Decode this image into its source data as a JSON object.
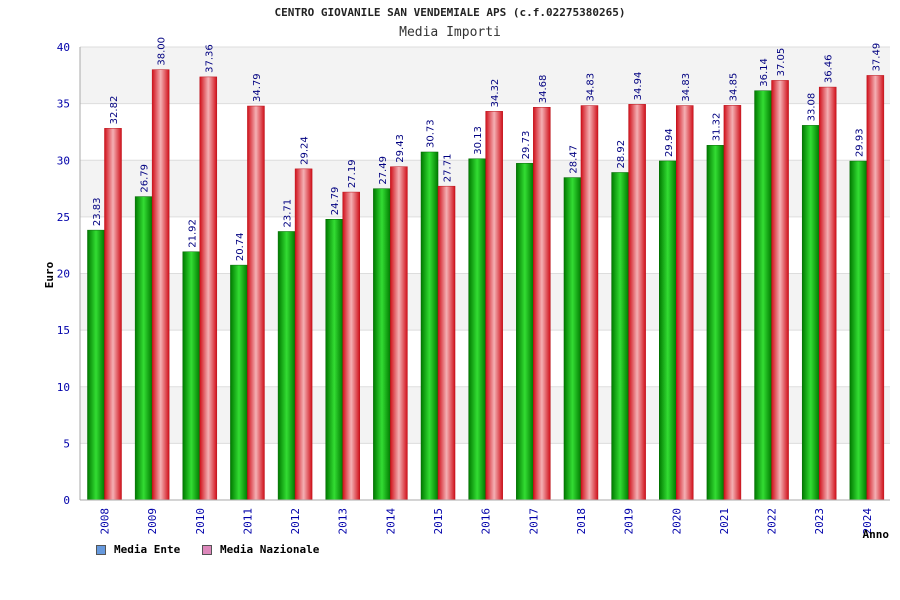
{
  "chart_data": {
    "type": "bar",
    "title": "CENTRO GIOVANILE SAN VENDEMIALE APS (c.f.02275380265)",
    "subtitle": "Media Importi",
    "xlabel": "Anno",
    "ylabel": "Euro",
    "ylim": [
      0,
      40
    ],
    "yticks": [
      0,
      5,
      10,
      15,
      20,
      25,
      30,
      35,
      40
    ],
    "categories": [
      "2008",
      "2009",
      "2010",
      "2011",
      "2012",
      "2013",
      "2014",
      "2015",
      "2016",
      "2017",
      "2018",
      "2019",
      "2020",
      "2021",
      "2022",
      "2023",
      "2024"
    ],
    "series": [
      {
        "name": "Media Ente",
        "color": "#00a000",
        "values": [
          23.83,
          26.79,
          21.92,
          20.74,
          23.71,
          24.79,
          27.49,
          30.73,
          30.13,
          29.73,
          28.47,
          28.92,
          29.94,
          31.32,
          36.14,
          33.08,
          29.93
        ]
      },
      {
        "name": "Media Nazionale",
        "color": "#e8202a",
        "values": [
          32.82,
          38.0,
          37.36,
          34.79,
          29.24,
          27.19,
          29.43,
          27.71,
          34.32,
          34.68,
          34.83,
          34.94,
          34.83,
          34.85,
          37.05,
          36.46,
          37.49
        ]
      }
    ],
    "data_labels": {
      "series0": [
        "23.83",
        "26.79",
        "21.92",
        "20.74",
        "23.71",
        "24.79",
        "27.49",
        "30.73",
        "30.13",
        "29.73",
        "28.47",
        "28.92",
        "29.94",
        "31.32",
        "36.14",
        "33.08",
        "29.93"
      ],
      "series1": [
        "32.82",
        "38.00",
        "37.36",
        "34.79",
        "29.24",
        "27.19",
        "29.43",
        "27.71",
        "34.32",
        "34.68",
        "34.83",
        "34.94",
        "34.83",
        "34.85",
        "37.05",
        "36.46",
        "37.49"
      ]
    },
    "grid": true,
    "legend": {
      "position": "bottom-left",
      "entries": [
        {
          "label": "Media Ente",
          "color": "#6699dd"
        },
        {
          "label": "Media Nazionale",
          "color": "#dd88bb"
        }
      ]
    }
  },
  "colors": {
    "axis_text": "#0000aa",
    "data_label": "#000080",
    "band_light": "#f3f3f3",
    "band_white": "#ffffff"
  }
}
